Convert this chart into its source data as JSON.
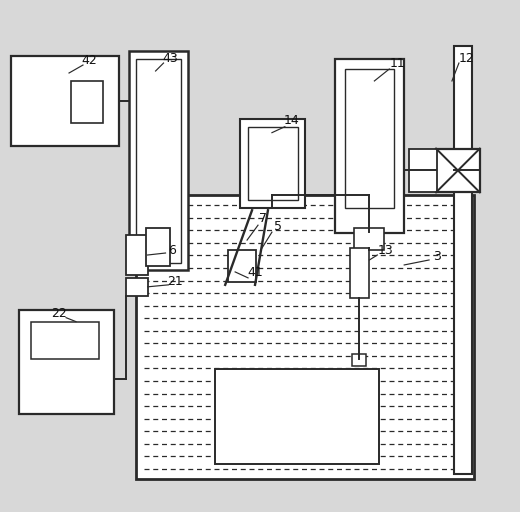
{
  "bg_color": "#d8d8d8",
  "line_color": "#2a2a2a",
  "lw": 1.4,
  "fig_w": 5.2,
  "fig_h": 5.12,
  "dpi": 100
}
